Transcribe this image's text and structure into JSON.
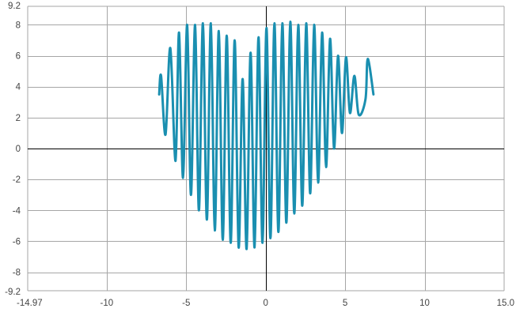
{
  "chart_data": {
    "type": "line",
    "title": "",
    "xlabel": "",
    "ylabel": "",
    "xlim": [
      -14.97,
      15.0
    ],
    "ylim": [
      -9.2,
      9.2
    ],
    "grid": true,
    "x_ticks": [
      -10,
      -5,
      0,
      5,
      10
    ],
    "y_ticks": [
      -8,
      -6,
      -4,
      -2,
      0,
      2,
      4,
      6,
      8
    ],
    "x_tick_labels": [
      "-14.97",
      "-10",
      "-5",
      "0",
      "5",
      "10",
      "15.0"
    ],
    "y_tick_labels": [
      "9.2",
      "8",
      "6",
      "4",
      "2",
      "0",
      "-2",
      "-4",
      "-6",
      "-8",
      "-9.2"
    ],
    "series": [
      {
        "color": "#1a8fb0",
        "x": [
          -6.7,
          -6.58,
          -6.3,
          -6.0,
          -5.67,
          -5.45,
          -5.2,
          -4.94,
          -4.7,
          -4.44,
          -4.2,
          -3.95,
          -3.7,
          -3.45,
          -3.2,
          -2.95,
          -2.7,
          -2.45,
          -2.2,
          -1.95,
          -1.7,
          -1.45,
          -1.2,
          -0.95,
          -0.7,
          -0.45,
          -0.2,
          0.05,
          0.3,
          0.55,
          0.8,
          1.05,
          1.3,
          1.55,
          1.8,
          2.05,
          2.3,
          2.55,
          2.8,
          3.05,
          3.3,
          3.55,
          3.8,
          4.05,
          4.3,
          4.55,
          4.8,
          5.05,
          5.3,
          5.58,
          5.85,
          6.28,
          6.42,
          6.78
        ],
        "y": [
          3.5,
          4.7,
          0.9,
          6.5,
          -0.8,
          7.5,
          -1.9,
          8.0,
          -3.0,
          8.0,
          -4.0,
          8.1,
          -4.6,
          8.1,
          -5.3,
          7.6,
          -5.9,
          7.3,
          -6.1,
          7.0,
          -6.4,
          4.5,
          -6.5,
          6.2,
          -6.4,
          7.2,
          -6.1,
          7.8,
          -5.8,
          8.1,
          -5.4,
          8.1,
          -4.8,
          8.2,
          -4.2,
          8.0,
          -3.7,
          8.1,
          -2.9,
          8.0,
          -2.2,
          7.5,
          -1.2,
          7.1,
          0.0,
          6.0,
          1.0,
          5.9,
          2.3,
          4.7,
          2.2,
          3.2,
          5.8,
          3.5
        ]
      }
    ]
  }
}
